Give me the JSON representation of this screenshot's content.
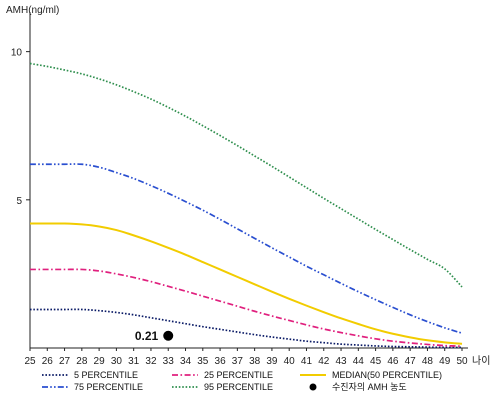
{
  "chart_data": {
    "type": "line",
    "title": "",
    "ylabel": "AMH(ng/ml)",
    "xlabel": "나이",
    "x": [
      25,
      26,
      27,
      28,
      29,
      30,
      31,
      32,
      33,
      34,
      35,
      36,
      37,
      38,
      39,
      40,
      41,
      42,
      43,
      44,
      45,
      46,
      47,
      48,
      49,
      50
    ],
    "xlim": [
      25,
      50
    ],
    "ylim": [
      0,
      11
    ],
    "y_ticks": [
      5,
      10
    ],
    "legend_position": "bottom",
    "series": [
      {
        "name": "5 PERCENTILE",
        "color": "#0a1a66",
        "dash": "dotted",
        "values": [
          1.3,
          1.3,
          1.3,
          1.3,
          1.26,
          1.2,
          1.12,
          1.02,
          0.92,
          0.82,
          0.72,
          0.63,
          0.54,
          0.45,
          0.37,
          0.3,
          0.23,
          0.18,
          0.13,
          0.1,
          0.07,
          0.05,
          0.04,
          0.03,
          0.02,
          0.02
        ]
      },
      {
        "name": "25 PERCENTILE",
        "color": "#e0207e",
        "dash": "dashdot",
        "values": [
          2.65,
          2.65,
          2.65,
          2.65,
          2.6,
          2.5,
          2.38,
          2.24,
          2.08,
          1.92,
          1.75,
          1.58,
          1.41,
          1.24,
          1.08,
          0.93,
          0.78,
          0.64,
          0.52,
          0.41,
          0.31,
          0.23,
          0.17,
          0.12,
          0.08,
          0.06
        ]
      },
      {
        "name": "MEDIAN(50 PERCENTILE)",
        "color": "#f2cc00",
        "dash": "solid",
        "values": [
          4.2,
          4.2,
          4.2,
          4.17,
          4.1,
          3.98,
          3.8,
          3.6,
          3.38,
          3.15,
          2.9,
          2.65,
          2.4,
          2.15,
          1.9,
          1.66,
          1.43,
          1.21,
          1.0,
          0.81,
          0.63,
          0.48,
          0.36,
          0.26,
          0.19,
          0.14
        ]
      },
      {
        "name": "75 PERCENTILE",
        "color": "#2a4fd0",
        "dash": "dashdotdot",
        "values": [
          6.2,
          6.2,
          6.2,
          6.2,
          6.1,
          5.92,
          5.72,
          5.48,
          5.22,
          4.94,
          4.65,
          4.34,
          4.02,
          3.7,
          3.38,
          3.07,
          2.76,
          2.47,
          2.18,
          1.9,
          1.63,
          1.37,
          1.12,
          0.89,
          0.68,
          0.5
        ]
      },
      {
        "name": "95 PERCENTILE",
        "color": "#2f8f4e",
        "dash": "dotted",
        "values": [
          9.6,
          9.5,
          9.38,
          9.25,
          9.08,
          8.88,
          8.65,
          8.4,
          8.12,
          7.82,
          7.5,
          7.17,
          6.83,
          6.48,
          6.13,
          5.77,
          5.41,
          5.05,
          4.7,
          4.35,
          4.0,
          3.66,
          3.32,
          2.99,
          2.67,
          2.06
        ]
      }
    ],
    "patient": {
      "name": "수진자의 AMH 농도",
      "x": 33,
      "y": 0.21,
      "label": "0.21",
      "color": "#000000"
    }
  },
  "legend": {
    "columns": [
      [
        "5 PERCENTILE",
        "75 PERCENTILE"
      ],
      [
        "25 PERCENTILE",
        "95 PERCENTILE"
      ],
      [
        "MEDIAN(50 PERCENTILE)",
        "수진자의 AMH 농도"
      ]
    ]
  }
}
